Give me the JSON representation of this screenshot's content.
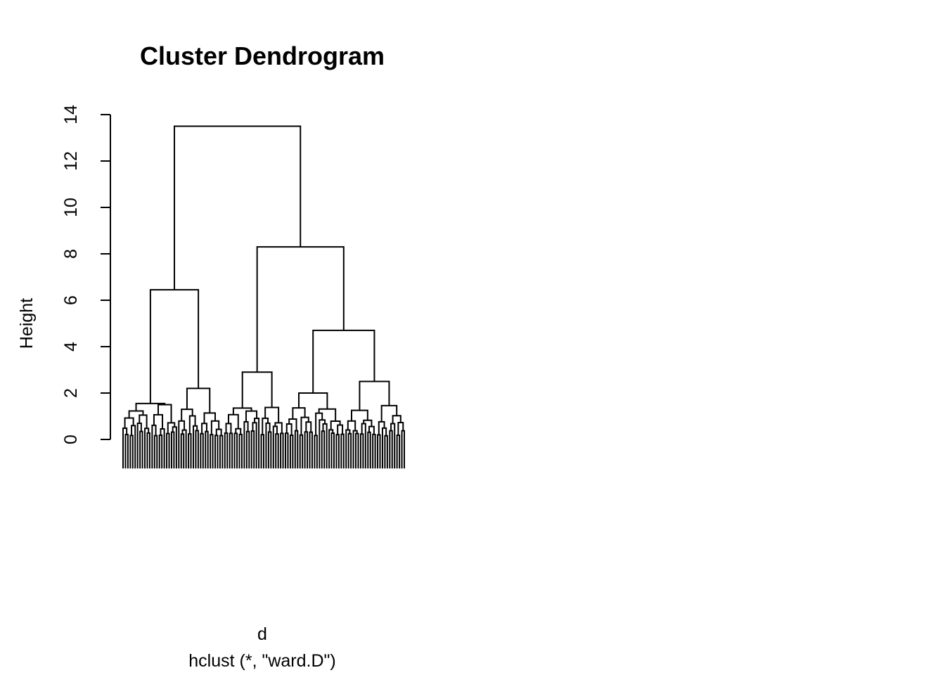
{
  "chart_data": {
    "type": "dendrogram",
    "title": "Cluster Dendrogram",
    "ylabel": "Height",
    "xlabel": "d",
    "sub": "hclust (*, \"ward.D\")",
    "ylim": [
      0,
      14
    ],
    "yticks": [
      0,
      2,
      4,
      6,
      8,
      10,
      12,
      14
    ],
    "n_leaves": 117,
    "leaf_labels": [],
    "merges": [
      {
        "height": 13.5,
        "left_leaves": [
          0,
          41
        ],
        "right_leaves": [
          42,
          116
        ]
      },
      {
        "height": 6.45,
        "left_leaves": [
          0,
          22
        ],
        "right_leaves": [
          23,
          41
        ]
      },
      {
        "height": 8.3,
        "left_leaves": [
          42,
          66
        ],
        "right_leaves": [
          67,
          116
        ]
      },
      {
        "height": 1.55,
        "left_leaves": [
          0,
          11
        ],
        "right_leaves": [
          12,
          22
        ]
      },
      {
        "height": 2.2,
        "left_leaves": [
          23,
          31
        ],
        "right_leaves": [
          32,
          41
        ]
      },
      {
        "height": 2.9,
        "left_leaves": [
          42,
          56
        ],
        "right_leaves": [
          57,
          66
        ]
      },
      {
        "height": 4.7,
        "left_leaves": [
          67,
          91
        ],
        "right_leaves": [
          92,
          116
        ]
      },
      {
        "height": 2.0,
        "left_leaves": [
          67,
          78
        ],
        "right_leaves": [
          79,
          91
        ]
      },
      {
        "height": 2.5,
        "left_leaves": [
          92,
          104
        ],
        "right_leaves": [
          105,
          116
        ]
      }
    ]
  }
}
